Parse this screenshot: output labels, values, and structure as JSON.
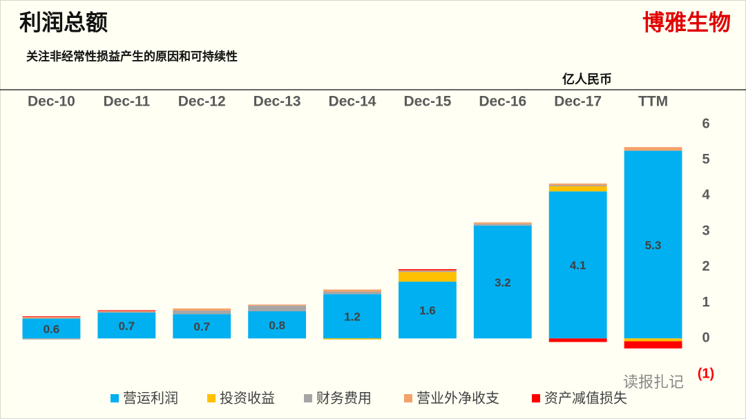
{
  "brand": "博雅生物",
  "watermark": "读报扎记",
  "chart_data": {
    "type": "stacked-bar",
    "title": "利润总额",
    "subtitle": "关注非经常性损益产生的原因和可持续性",
    "unit": "亿人民币",
    "categories": [
      "Dec-10",
      "Dec-11",
      "Dec-12",
      "Dec-13",
      "Dec-14",
      "Dec-15",
      "Dec-16",
      "Dec-17",
      "TTM"
    ],
    "series": [
      {
        "name": "营运利润",
        "color": "#00b0f0",
        "values": [
          0.56,
          0.72,
          0.68,
          0.76,
          1.24,
          1.59,
          3.16,
          4.12,
          5.26
        ],
        "value_labels": [
          "0.6",
          "0.7",
          "0.7",
          "0.8",
          "1.2",
          "1.6",
          "3.2",
          "4.1",
          "5.3"
        ]
      },
      {
        "name": "投资收益",
        "color": "#ffc000",
        "values": [
          0,
          0,
          0,
          0,
          -0.03,
          0.27,
          0,
          0.14,
          -0.08
        ]
      },
      {
        "name": "财务费用",
        "color": "#a6a6a6",
        "values": [
          -0.03,
          0.03,
          0.1,
          0.16,
          0.07,
          0.03,
          0.05,
          0.03,
          0
        ]
      },
      {
        "name": "营业外净收支",
        "color": "#f4a26b",
        "values": [
          0.04,
          0.02,
          0.06,
          0.03,
          0.06,
          0.02,
          0.04,
          0.05,
          0.1
        ]
      },
      {
        "name": "资产减值损失",
        "color": "#ff0000",
        "values": [
          0.02,
          0.02,
          0,
          0,
          0,
          0.03,
          0,
          -0.1,
          -0.2
        ]
      }
    ],
    "ylim": [
      -1,
      6
    ],
    "yticks": [
      {
        "value": -1,
        "label": "(1)"
      },
      0,
      1,
      2,
      3,
      4,
      5,
      6
    ],
    "negative_tick_color": "#ff0000",
    "legend": "bottom"
  }
}
